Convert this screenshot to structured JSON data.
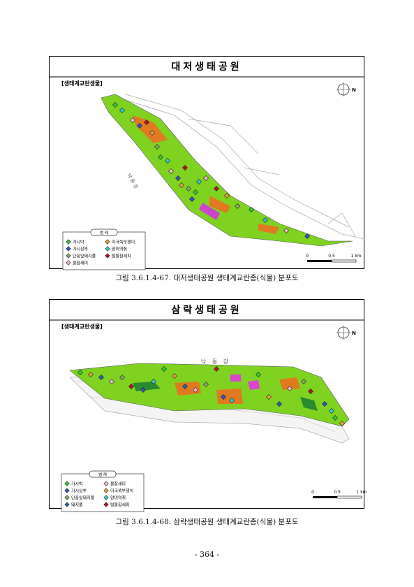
{
  "figures": [
    {
      "title": "대저생태공원",
      "subtitle": "[생태계교란생물]",
      "river": "낙 동 강",
      "north": "N",
      "legend": {
        "title": "범 례",
        "items": [
          {
            "label": "가시박",
            "color": "#33cc33"
          },
          {
            "label": "미국쑥부쟁이",
            "color": "#e8a040"
          },
          {
            "label": "가시상추",
            "color": "#3355cc"
          },
          {
            "label": "양미역취",
            "color": "#33cccc"
          },
          {
            "label": "단풍잎돼지풀",
            "color": "#88aa66"
          },
          {
            "label": "털물참새피",
            "color": "#bb1122"
          },
          {
            "label": "물참새피",
            "color": "#f0b8c8"
          }
        ]
      },
      "scale": [
        "0",
        "0.5",
        "1 km"
      ],
      "caption": "그림 3.6.1.4-67. 대저생태공원 생태계교란종(식물) 분포도"
    },
    {
      "title": "삼락생태공원",
      "subtitle": "[생태계교란생물]",
      "river": "낙 동 강",
      "north": "N",
      "legend": {
        "title": "범 례",
        "items": [
          {
            "label": "가시박",
            "color": "#33cc33"
          },
          {
            "label": "물참새피",
            "color": "#f0b8c8"
          },
          {
            "label": "가시상추",
            "color": "#3355cc"
          },
          {
            "label": "미국쑥부쟁이",
            "color": "#e8a040"
          },
          {
            "label": "단풍잎돼지풀",
            "color": "#88aa66"
          },
          {
            "label": "양미역취",
            "color": "#33cccc"
          },
          {
            "label": "돼지풀",
            "color": "#2266aa"
          },
          {
            "label": "털물참새피",
            "color": "#bb1122"
          }
        ]
      },
      "scale": [
        "0",
        "0.5",
        "1 km"
      ],
      "caption": "그림 3.6.1.4-68. 삼락생태공원 생태계교란종(식물) 분포도"
    }
  ],
  "page_number": "- 364 -"
}
